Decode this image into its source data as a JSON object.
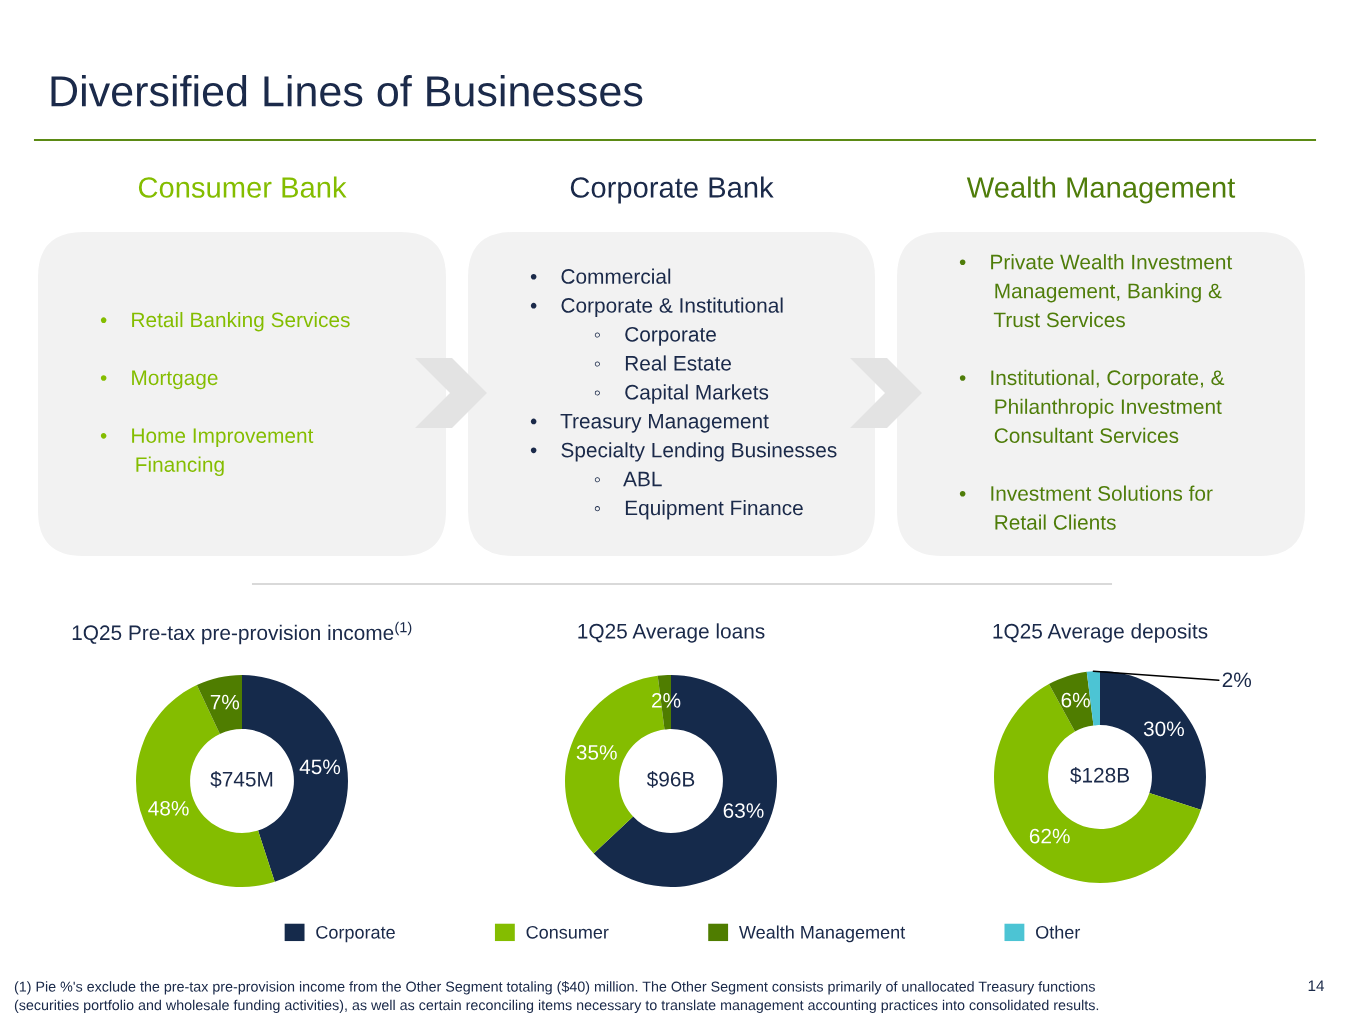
{
  "chart_data": [
    {
      "type": "other",
      "title": "Diversified Lines of Businesses",
      "annotations": [
        "(1) Pie %'s exclude the pre-tax pre-provision income from the Other Segment totaling ($40) million. The Other Segment consists primarily of unallocated Treasury functions\n(securities portfolio and wholesale funding activities), as well as certain reconciling items necessary to translate management accounting practices into consolidated results.",
        "14"
      ]
    },
    {
      "type": "other",
      "title": "Consumer Bank",
      "color": "#84bd00",
      "annotations": [
        "•    Retail Banking Services\n\n•    Mortgage\n\n•    Home Improvement\n      Financing"
      ]
    },
    {
      "type": "other",
      "title": "Corporate Bank",
      "color": "#1b2a4a",
      "annotations": [
        "•    Commercial\n•    Corporate & Institutional\n           ◦    Corporate\n           ◦    Real Estate\n           ◦    Capital Markets\n•    Treasury Management\n•    Specialty Lending Businesses\n           ◦    ABL\n           ◦    Equipment Finance"
      ]
    },
    {
      "type": "other",
      "title": "Wealth Management",
      "color": "#4f7d0a",
      "annotations": [
        "•    Private Wealth Investment\n      Management, Banking &\n      Trust Services\n\n•    Institutional, Corporate, &\n      Philanthropic Investment\n      Consultant Services\n\n•    Investment Solutions for\n      Retail Clients"
      ]
    },
    {
      "type": "donut",
      "categories": [
        "Corporate",
        "Consumer",
        "Wealth Management",
        "Other"
      ],
      "colors": [
        "#152a4b",
        "#84bd00",
        "#4f7d00",
        "#4cc4d4"
      ],
      "series": [
        {
          "name": "1Q25 Pre-tax pre-provision income$^{(1)}$",
          "values": [
            45,
            48,
            7,
            null
          ],
          "value_labels": [
            "45%",
            "48%",
            "7%",
            null
          ]
        },
        {
          "name": "1Q25 Average loans",
          "values": [
            63,
            35,
            2,
            null
          ],
          "value_labels": [
            "63%",
            "35%",
            "2%",
            null
          ]
        },
        {
          "name": "1Q25 Average deposits",
          "values": [
            30,
            62,
            6,
            2
          ],
          "value_labels": [
            "30%",
            "62%",
            "6%",
            "2%"
          ]
        }
      ],
      "annotations": [
        "$745M",
        "$96B",
        "$128B"
      ],
      "legend": "bottom"
    }
  ]
}
